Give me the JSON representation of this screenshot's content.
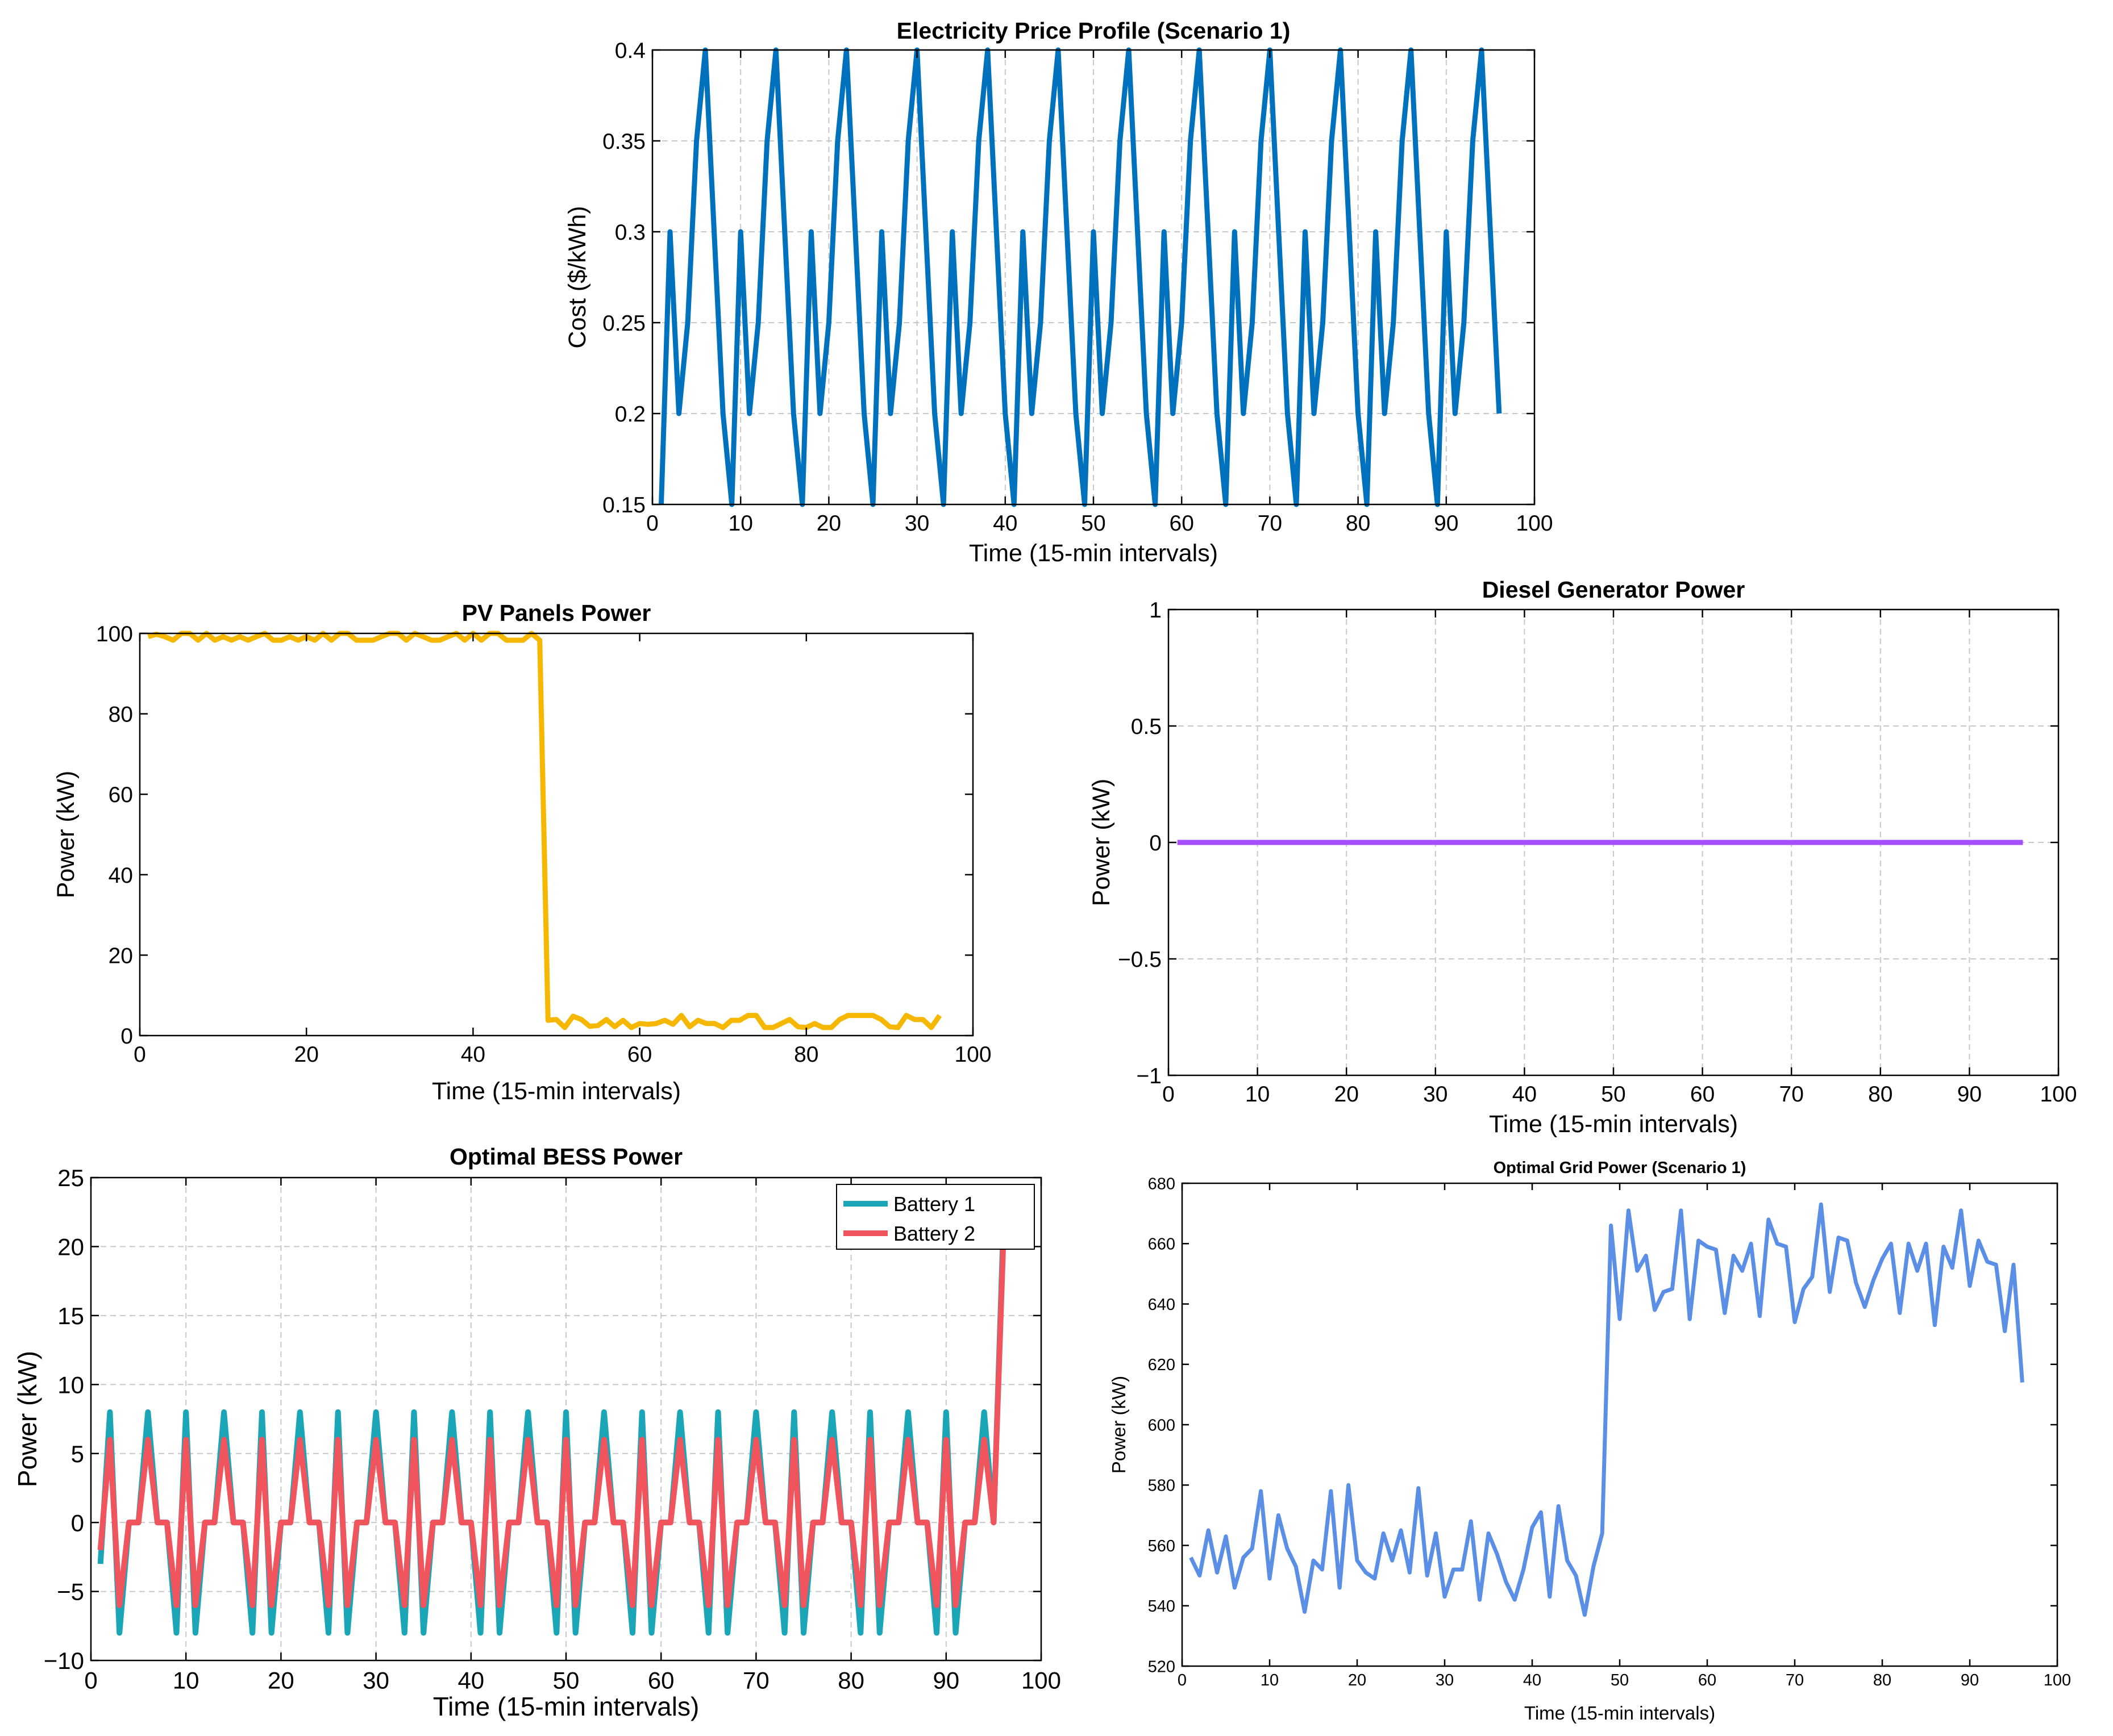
{
  "chart_data": [
    {
      "id": "price",
      "type": "line",
      "title": "Electricity Price Profile (Scenario 1)",
      "xlabel": "Time (15-min intervals)",
      "ylabel": "Cost ($/kWh)",
      "xlim": [
        0,
        100
      ],
      "ylim": [
        0.15,
        0.4
      ],
      "xticks": [
        0,
        10,
        20,
        30,
        40,
        50,
        60,
        70,
        80,
        90,
        100
      ],
      "yticks": [
        0.15,
        0.2,
        0.25,
        0.3,
        0.35,
        0.4
      ],
      "grid": true,
      "legend": null,
      "series": [
        {
          "color": "#0072bd",
          "x_start": 1,
          "x_step": 1,
          "values": [
            0.15,
            0.3,
            0.2,
            0.25,
            0.35,
            0.4,
            0.3,
            0.2,
            0.15,
            0.3,
            0.2,
            0.25,
            0.35,
            0.4,
            0.3,
            0.2,
            0.15,
            0.3,
            0.2,
            0.25,
            0.35,
            0.4,
            0.3,
            0.2,
            0.15,
            0.3,
            0.2,
            0.25,
            0.35,
            0.4,
            0.3,
            0.2,
            0.15,
            0.3,
            0.2,
            0.25,
            0.35,
            0.4,
            0.3,
            0.2,
            0.15,
            0.3,
            0.2,
            0.25,
            0.35,
            0.4,
            0.3,
            0.2,
            0.15,
            0.3,
            0.2,
            0.25,
            0.35,
            0.4,
            0.3,
            0.2,
            0.15,
            0.3,
            0.2,
            0.25,
            0.35,
            0.4,
            0.3,
            0.2,
            0.15,
            0.3,
            0.2,
            0.25,
            0.35,
            0.4,
            0.3,
            0.2,
            0.15,
            0.3,
            0.2,
            0.25,
            0.35,
            0.4,
            0.3,
            0.2,
            0.15,
            0.3,
            0.2,
            0.25,
            0.35,
            0.4,
            0.3,
            0.2,
            0.15,
            0.3,
            0.2,
            0.25,
            0.35,
            0.4,
            0.3,
            0.2
          ]
        }
      ]
    },
    {
      "id": "pv",
      "type": "line",
      "title": "PV Panels Power",
      "xlabel": "Time (15-min intervals)",
      "ylabel": "Power (kW)",
      "xlim": [
        0,
        100
      ],
      "ylim": [
        0,
        100
      ],
      "xticks": [
        0,
        20,
        40,
        60,
        80,
        100
      ],
      "yticks": [
        0,
        20,
        40,
        60,
        80,
        100
      ],
      "grid": false,
      "legend": null,
      "series": [
        {
          "color": "#f5b700",
          "x_start": 1,
          "x_step": 1,
          "values": [
            99.2,
            99.8,
            99.2,
            98.3,
            100,
            100,
            98.3,
            100,
            98.3,
            99.2,
            98.3,
            99.2,
            98.3,
            99.2,
            100,
            98.3,
            98.3,
            99.2,
            98.3,
            99.2,
            98.3,
            100,
            98.3,
            100,
            100,
            98.3,
            98.3,
            98.3,
            99.2,
            100,
            100,
            98.3,
            100,
            99.2,
            98.3,
            98.3,
            99.2,
            100,
            98.3,
            100,
            98.3,
            100,
            100,
            98.3,
            98.3,
            98.3,
            100,
            98.3,
            3.8,
            4.0,
            2.0,
            4.8,
            4.0,
            2.3,
            2.5,
            4.0,
            2.2,
            3.8,
            2.0,
            3.0,
            2.8,
            3.0,
            3.8,
            2.8,
            5.0,
            2.2,
            3.8,
            3.0,
            3.0,
            2.0,
            3.8,
            3.8,
            5.0,
            5.0,
            2.0,
            2.0,
            3.0,
            4.0,
            2.2,
            2.0,
            3.0,
            2.0,
            2.0,
            4.0,
            5.0,
            5.0,
            5.0,
            5.0,
            4.0,
            2.2,
            2.0,
            5.0,
            4.0,
            4.0,
            2.0,
            5.0
          ]
        }
      ]
    },
    {
      "id": "diesel",
      "type": "line",
      "title": "Diesel Generator Power",
      "xlabel": "Time (15-min intervals)",
      "ylabel": "Power (kW)",
      "xlim": [
        0,
        100
      ],
      "ylim": [
        -1,
        1
      ],
      "xticks": [
        0,
        10,
        20,
        30,
        40,
        50,
        60,
        70,
        80,
        90,
        100
      ],
      "yticks": [
        -1,
        -0.5,
        0,
        0.5,
        1
      ],
      "grid": true,
      "legend": null,
      "series": [
        {
          "color": "#a64dff",
          "x": [
            1,
            96
          ],
          "values": [
            0,
            0
          ]
        }
      ]
    },
    {
      "id": "bess",
      "type": "line",
      "title": "Optimal BESS Power",
      "xlabel": "Time (15-min intervals)",
      "ylabel": "Power (kW)",
      "xlim": [
        0,
        100
      ],
      "ylim": [
        -10,
        25
      ],
      "xticks": [
        0,
        10,
        20,
        30,
        40,
        50,
        60,
        70,
        80,
        90,
        100
      ],
      "yticks": [
        -10,
        -5,
        0,
        5,
        10,
        15,
        20,
        25
      ],
      "grid": true,
      "legend": "top-right",
      "series": [
        {
          "name": "Battery 1",
          "color": "#1aa6b7",
          "x_start": 1,
          "x_step": 1,
          "values": [
            -3,
            8,
            -8,
            0,
            0,
            8,
            0,
            0,
            -8,
            8,
            -8,
            0,
            0,
            8,
            0,
            0,
            -8,
            8,
            -8,
            0,
            0,
            8,
            0,
            0,
            -8,
            8,
            -8,
            0,
            0,
            8,
            0,
            0,
            -8,
            8,
            -8,
            0,
            0,
            8,
            0,
            0,
            -8,
            8,
            -8,
            0,
            0,
            8,
            0,
            0,
            -8,
            8,
            -8,
            0,
            0,
            8,
            0,
            0,
            -8,
            8,
            -8,
            0,
            0,
            8,
            0,
            0,
            -8,
            8,
            -8,
            0,
            0,
            8,
            0,
            0,
            -8,
            8,
            -8,
            0,
            0,
            8,
            0,
            0,
            -8,
            8,
            -8,
            0,
            0,
            8,
            0,
            0,
            -8,
            8,
            -8,
            0,
            0,
            8,
            0,
            21
          ]
        },
        {
          "name": "Battery 2",
          "color": "#f0545c",
          "x_start": 1,
          "x_step": 1,
          "values": [
            -2,
            6,
            -6,
            0,
            0,
            6,
            0,
            0,
            -6,
            6,
            -6,
            0,
            0,
            6,
            0,
            0,
            -6,
            6,
            -6,
            0,
            0,
            6,
            0,
            0,
            -6,
            6,
            -6,
            0,
            0,
            6,
            0,
            0,
            -6,
            6,
            -6,
            0,
            0,
            6,
            0,
            0,
            -6,
            6,
            -6,
            0,
            0,
            6,
            0,
            0,
            -6,
            6,
            -6,
            0,
            0,
            6,
            0,
            0,
            -6,
            6,
            -6,
            0,
            0,
            6,
            0,
            0,
            -6,
            6,
            -6,
            0,
            0,
            6,
            0,
            0,
            -6,
            6,
            -6,
            0,
            0,
            6,
            0,
            0,
            -6,
            6,
            -6,
            0,
            0,
            6,
            0,
            0,
            -6,
            6,
            -6,
            0,
            0,
            6,
            0,
            20
          ]
        }
      ]
    },
    {
      "id": "grid",
      "type": "line",
      "title": "Optimal Grid Power (Scenario 1)",
      "xlabel": "Time (15-min intervals)",
      "ylabel": "Power (kW)",
      "xlim": [
        0,
        100
      ],
      "ylim": [
        520,
        680
      ],
      "xticks": [
        0,
        10,
        20,
        30,
        40,
        50,
        60,
        70,
        80,
        90,
        100
      ],
      "yticks": [
        520,
        540,
        560,
        580,
        600,
        620,
        640,
        660,
        680
      ],
      "grid": false,
      "legend": null,
      "series": [
        {
          "color": "#5b8fe6",
          "x_start": 1,
          "x_step": 1,
          "values": [
            556,
            550,
            565,
            551,
            563,
            546,
            556,
            559,
            578,
            549,
            570,
            559,
            553,
            538,
            555,
            552,
            578,
            546,
            580,
            555,
            551,
            549,
            564,
            555,
            565,
            551,
            579,
            550,
            564,
            543,
            552,
            552,
            568,
            542,
            564,
            557,
            548,
            542,
            552,
            566,
            571,
            543,
            573,
            555,
            550,
            537,
            553,
            564,
            666,
            635,
            671,
            651,
            656,
            638,
            644,
            645,
            671,
            635,
            661,
            659,
            658,
            637,
            656,
            651,
            660,
            636,
            668,
            660,
            659,
            634,
            645,
            649,
            673,
            644,
            662,
            661,
            647,
            639,
            648,
            655,
            660,
            637,
            660,
            651,
            660,
            633,
            659,
            652,
            671,
            646,
            661,
            654,
            653,
            631,
            653,
            614
          ]
        }
      ]
    }
  ]
}
